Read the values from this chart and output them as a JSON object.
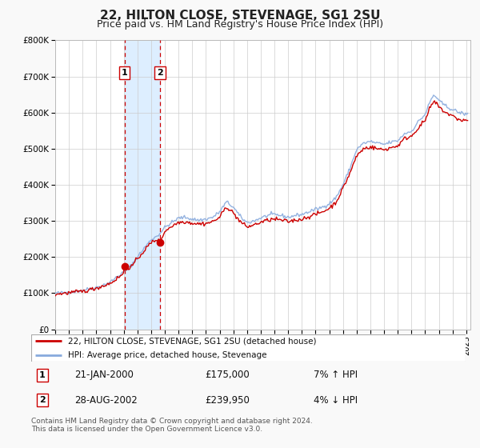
{
  "title": "22, HILTON CLOSE, STEVENAGE, SG1 2SU",
  "subtitle": "Price paid vs. HM Land Registry's House Price Index (HPI)",
  "ylim": [
    0,
    800000
  ],
  "xlim_start": 1995.0,
  "xlim_end": 2025.3,
  "yticks": [
    0,
    100000,
    200000,
    300000,
    400000,
    500000,
    600000,
    700000,
    800000
  ],
  "ytick_labels": [
    "£0",
    "£100K",
    "£200K",
    "£300K",
    "£400K",
    "£500K",
    "£600K",
    "£700K",
    "£800K"
  ],
  "xticks": [
    1995,
    1996,
    1997,
    1998,
    1999,
    2000,
    2001,
    2002,
    2003,
    2004,
    2005,
    2006,
    2007,
    2008,
    2009,
    2010,
    2011,
    2012,
    2013,
    2014,
    2015,
    2016,
    2017,
    2018,
    2019,
    2020,
    2021,
    2022,
    2023,
    2024,
    2025
  ],
  "sale1_date": 2000.055,
  "sale1_price": 175000,
  "sale2_date": 2002.655,
  "sale2_price": 239950,
  "sale1_date_str": "21-JAN-2000",
  "sale2_date_str": "28-AUG-2002",
  "sale1_hpi_pct": "7% ↑ HPI",
  "sale2_hpi_pct": "4% ↓ HPI",
  "red_line_color": "#cc0000",
  "blue_line_color": "#88aadd",
  "shade_color": "#ddeeff",
  "grid_color": "#cccccc",
  "bg_color": "#f9f9f9",
  "plot_bg_color": "#ffffff",
  "title_fontsize": 11,
  "subtitle_fontsize": 9,
  "legend_line1": "22, HILTON CLOSE, STEVENAGE, SG1 2SU (detached house)",
  "legend_line2": "HPI: Average price, detached house, Stevenage",
  "footer1": "Contains HM Land Registry data © Crown copyright and database right 2024.",
  "footer2": "This data is licensed under the Open Government Licence v3.0.",
  "hpi_anchors": [
    [
      1995.0,
      100000
    ],
    [
      1995.5,
      101000
    ],
    [
      1996.0,
      103000
    ],
    [
      1996.5,
      105000
    ],
    [
      1997.0,
      108000
    ],
    [
      1997.5,
      112000
    ],
    [
      1998.0,
      116000
    ],
    [
      1998.5,
      122000
    ],
    [
      1999.0,
      130000
    ],
    [
      1999.5,
      145000
    ],
    [
      2000.0,
      158000
    ],
    [
      2000.5,
      175000
    ],
    [
      2001.0,
      200000
    ],
    [
      2001.5,
      225000
    ],
    [
      2002.0,
      248000
    ],
    [
      2002.5,
      260000
    ],
    [
      2003.0,
      282000
    ],
    [
      2003.5,
      295000
    ],
    [
      2004.0,
      308000
    ],
    [
      2004.5,
      310000
    ],
    [
      2005.0,
      305000
    ],
    [
      2005.5,
      302000
    ],
    [
      2006.0,
      305000
    ],
    [
      2006.5,
      310000
    ],
    [
      2007.0,
      325000
    ],
    [
      2007.5,
      353000
    ],
    [
      2008.0,
      338000
    ],
    [
      2008.5,
      312000
    ],
    [
      2009.0,
      295000
    ],
    [
      2009.5,
      300000
    ],
    [
      2010.0,
      308000
    ],
    [
      2010.5,
      315000
    ],
    [
      2011.0,
      318000
    ],
    [
      2011.5,
      315000
    ],
    [
      2012.0,
      310000
    ],
    [
      2012.5,
      315000
    ],
    [
      2013.0,
      318000
    ],
    [
      2013.5,
      325000
    ],
    [
      2014.0,
      332000
    ],
    [
      2014.5,
      338000
    ],
    [
      2015.0,
      348000
    ],
    [
      2015.5,
      365000
    ],
    [
      2016.0,
      400000
    ],
    [
      2016.5,
      445000
    ],
    [
      2017.0,
      498000
    ],
    [
      2017.5,
      515000
    ],
    [
      2018.0,
      520000
    ],
    [
      2018.5,
      515000
    ],
    [
      2019.0,
      512000
    ],
    [
      2019.5,
      518000
    ],
    [
      2020.0,
      522000
    ],
    [
      2020.5,
      542000
    ],
    [
      2021.0,
      548000
    ],
    [
      2021.5,
      575000
    ],
    [
      2022.0,
      595000
    ],
    [
      2022.3,
      625000
    ],
    [
      2022.6,
      648000
    ],
    [
      2022.9,
      640000
    ],
    [
      2023.0,
      632000
    ],
    [
      2023.5,
      618000
    ],
    [
      2024.0,
      608000
    ],
    [
      2024.5,
      600000
    ],
    [
      2025.0,
      595000
    ]
  ],
  "prop_anchors": [
    [
      1995.0,
      97000
    ],
    [
      1995.5,
      99000
    ],
    [
      1996.0,
      101000
    ],
    [
      1996.5,
      103000
    ],
    [
      1997.0,
      105000
    ],
    [
      1997.5,
      109000
    ],
    [
      1998.0,
      114000
    ],
    [
      1998.5,
      120000
    ],
    [
      1999.0,
      127000
    ],
    [
      1999.5,
      140000
    ],
    [
      2000.0,
      155000
    ],
    [
      2000.055,
      175000
    ],
    [
      2000.5,
      170000
    ],
    [
      2001.0,
      195000
    ],
    [
      2001.5,
      218000
    ],
    [
      2002.0,
      240000
    ],
    [
      2002.5,
      250000
    ],
    [
      2002.655,
      239950
    ],
    [
      2003.0,
      272000
    ],
    [
      2003.5,
      285000
    ],
    [
      2004.0,
      296000
    ],
    [
      2004.5,
      298000
    ],
    [
      2005.0,
      294000
    ],
    [
      2005.5,
      292000
    ],
    [
      2006.0,
      293000
    ],
    [
      2006.5,
      298000
    ],
    [
      2007.0,
      310000
    ],
    [
      2007.5,
      340000
    ],
    [
      2008.0,
      322000
    ],
    [
      2008.5,
      298000
    ],
    [
      2009.0,
      283000
    ],
    [
      2009.5,
      289000
    ],
    [
      2010.0,
      296000
    ],
    [
      2010.5,
      302000
    ],
    [
      2011.0,
      305000
    ],
    [
      2011.5,
      302000
    ],
    [
      2012.0,
      298000
    ],
    [
      2012.5,
      302000
    ],
    [
      2013.0,
      305000
    ],
    [
      2013.5,
      312000
    ],
    [
      2014.0,
      318000
    ],
    [
      2014.5,
      325000
    ],
    [
      2015.0,
      335000
    ],
    [
      2015.5,
      352000
    ],
    [
      2016.0,
      390000
    ],
    [
      2016.5,
      432000
    ],
    [
      2017.0,
      480000
    ],
    [
      2017.5,
      500000
    ],
    [
      2018.0,
      505000
    ],
    [
      2018.5,
      500000
    ],
    [
      2019.0,
      497000
    ],
    [
      2019.5,
      503000
    ],
    [
      2020.0,
      508000
    ],
    [
      2020.5,
      528000
    ],
    [
      2021.0,
      535000
    ],
    [
      2021.5,
      558000
    ],
    [
      2022.0,
      578000
    ],
    [
      2022.3,
      608000
    ],
    [
      2022.6,
      630000
    ],
    [
      2022.9,
      622000
    ],
    [
      2023.0,
      615000
    ],
    [
      2023.5,
      600000
    ],
    [
      2024.0,
      590000
    ],
    [
      2024.5,
      580000
    ],
    [
      2025.0,
      578000
    ]
  ]
}
